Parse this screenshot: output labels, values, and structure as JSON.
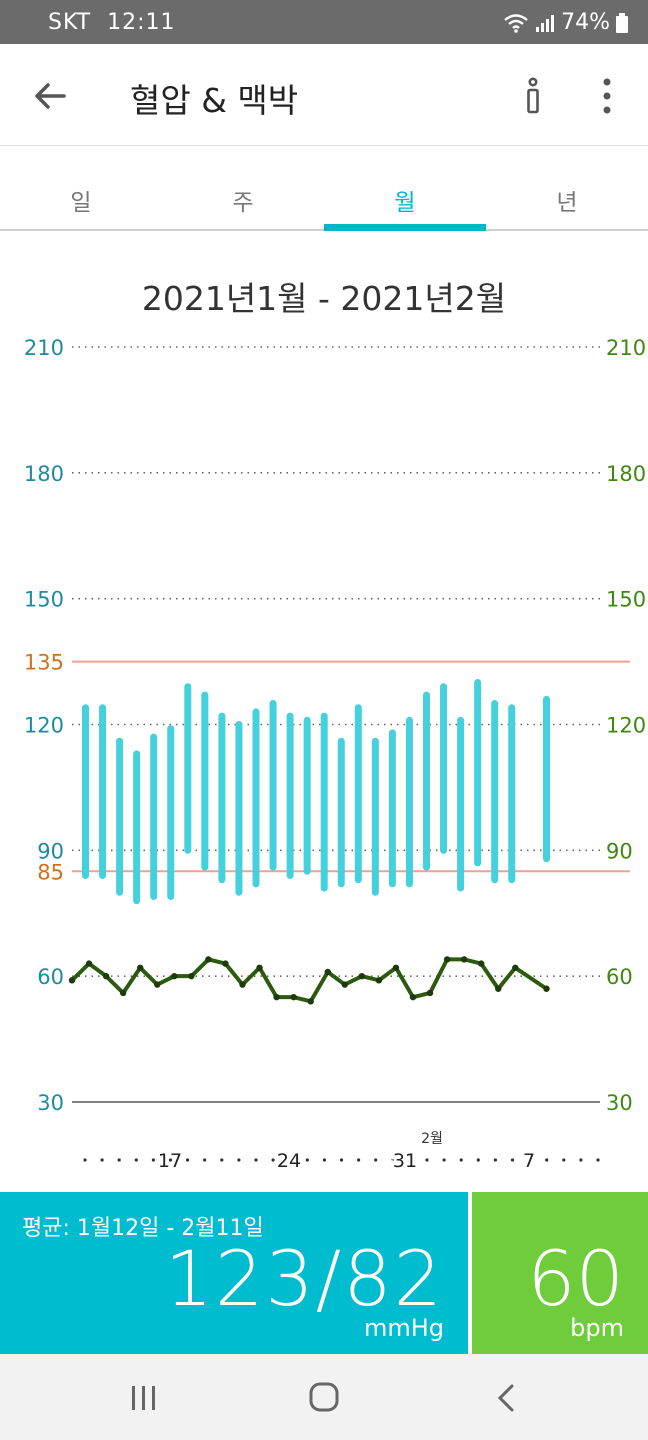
{
  "status_bar": {
    "carrier": "SKT",
    "time": "12:11",
    "battery": "74%"
  },
  "header": {
    "title": "혈압 & 맥박",
    "back_icon": "arrow-left-icon",
    "info_icon": "info-icon",
    "more_icon": "more-vertical-icon"
  },
  "tabs": [
    {
      "label": "일",
      "active": false
    },
    {
      "label": "주",
      "active": false
    },
    {
      "label": "월",
      "active": true
    },
    {
      "label": "년",
      "active": false
    }
  ],
  "range_title": "2021년1월 - 2021년2월",
  "colors": {
    "accent": "#00b7c9",
    "bp_bar": "#44d0dc",
    "pulse_line": "#2c5a0f",
    "threshold": "#f0a090",
    "right_axis": "#3e8a10",
    "left_axis": "#1f8aa0",
    "threshold_label": "#d27020"
  },
  "chart_data": {
    "type": "bar",
    "left_axis_ticks": [
      "210",
      "180",
      "150",
      "120",
      "90",
      "60",
      "30"
    ],
    "right_axis_ticks": [
      "210",
      "180",
      "150",
      "120",
      "90",
      "60",
      "30"
    ],
    "threshold_labels": [
      "135",
      "85"
    ],
    "thresholds": [
      135,
      85
    ],
    "ylim": [
      30,
      210
    ],
    "x_ticks": [
      "17",
      "24",
      "31",
      "7"
    ],
    "month_marker": "2월",
    "bp_series": {
      "name": "",
      "high": [
        124,
        124,
        116,
        113,
        117,
        119,
        129,
        127,
        122,
        120,
        123,
        125,
        122,
        121,
        122,
        116,
        124,
        116,
        118,
        121,
        127,
        129,
        121,
        130,
        125,
        124,
        126
      ],
      "low": [
        84,
        84,
        80,
        78,
        79,
        79,
        90,
        86,
        83,
        80,
        82,
        86,
        84,
        85,
        81,
        82,
        83,
        80,
        82,
        82,
        86,
        90,
        81,
        87,
        83,
        83,
        88
      ]
    },
    "pulse_series": {
      "name": "",
      "values": [
        59,
        63,
        60,
        56,
        62,
        58,
        60,
        60,
        64,
        63,
        58,
        62,
        55,
        55,
        54,
        61,
        58,
        60,
        59,
        62,
        55,
        56,
        64,
        64,
        63,
        57,
        62,
        57
      ]
    }
  },
  "summary": {
    "avg_label": "평균: 1월12일 - 2월11일",
    "bp_value": "123/82",
    "bp_unit": "mmHg",
    "pulse_value": "60",
    "pulse_unit": "bpm"
  },
  "navbar": {
    "recent_icon": "recent-apps-icon",
    "home_icon": "home-icon",
    "back_icon": "back-chevron-icon"
  }
}
